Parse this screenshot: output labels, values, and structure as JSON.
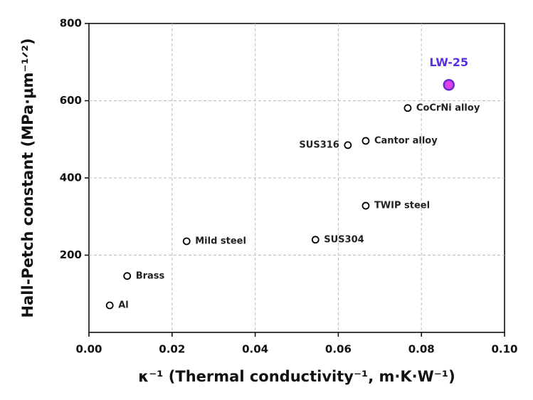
{
  "chart_data": {
    "type": "scatter",
    "xlabel": "κ⁻¹ (Thermal conductivity⁻¹, m·K·W⁻¹)",
    "ylabel": "Hall-Petch constant (MPa·μm⁻¹ᐟ²)",
    "x": [
      0.005,
      0.0092,
      0.0235,
      0.0545,
      0.0666,
      0.0623,
      0.0666,
      0.0767,
      0.0866
    ],
    "values": [
      70,
      146,
      236,
      240,
      328,
      485,
      496,
      581,
      641
    ],
    "point_labels": [
      "Al",
      "Brass",
      "Mild steel",
      "SUS304",
      "TWIP steel",
      "SUS316",
      "Cantor alloy",
      "CoCrNi alloy",
      "LW-25"
    ],
    "marker_colors": [
      "#ffffff",
      "#ffffff",
      "#ffffff",
      "#ffffff",
      "#ffffff",
      "#ffffff",
      "#ffffff",
      "#ffffff",
      "#e040e8"
    ],
    "marker_edge_colors": [
      "#000000",
      "#000000",
      "#000000",
      "#000000",
      "#000000",
      "#000000",
      "#000000",
      "#000000",
      "#6a2bd0"
    ],
    "label_colors": [
      "#222222",
      "#222222",
      "#222222",
      "#222222",
      "#222222",
      "#222222",
      "#222222",
      "#222222",
      "#5a2ee0"
    ],
    "xlim": [
      0,
      0.1
    ],
    "ylim": [
      0,
      800
    ],
    "xticks": [
      {
        "value": 0,
        "label": "0.00"
      },
      {
        "value": 0.02,
        "label": "0.02"
      },
      {
        "value": 0.04,
        "label": "0.04"
      },
      {
        "value": 0.06,
        "label": "0.06"
      },
      {
        "value": 0.08,
        "label": "0.08"
      },
      {
        "value": 0.1,
        "label": "0.10"
      }
    ],
    "yticks": [
      200,
      400,
      600,
      800
    ],
    "grid": true
  }
}
